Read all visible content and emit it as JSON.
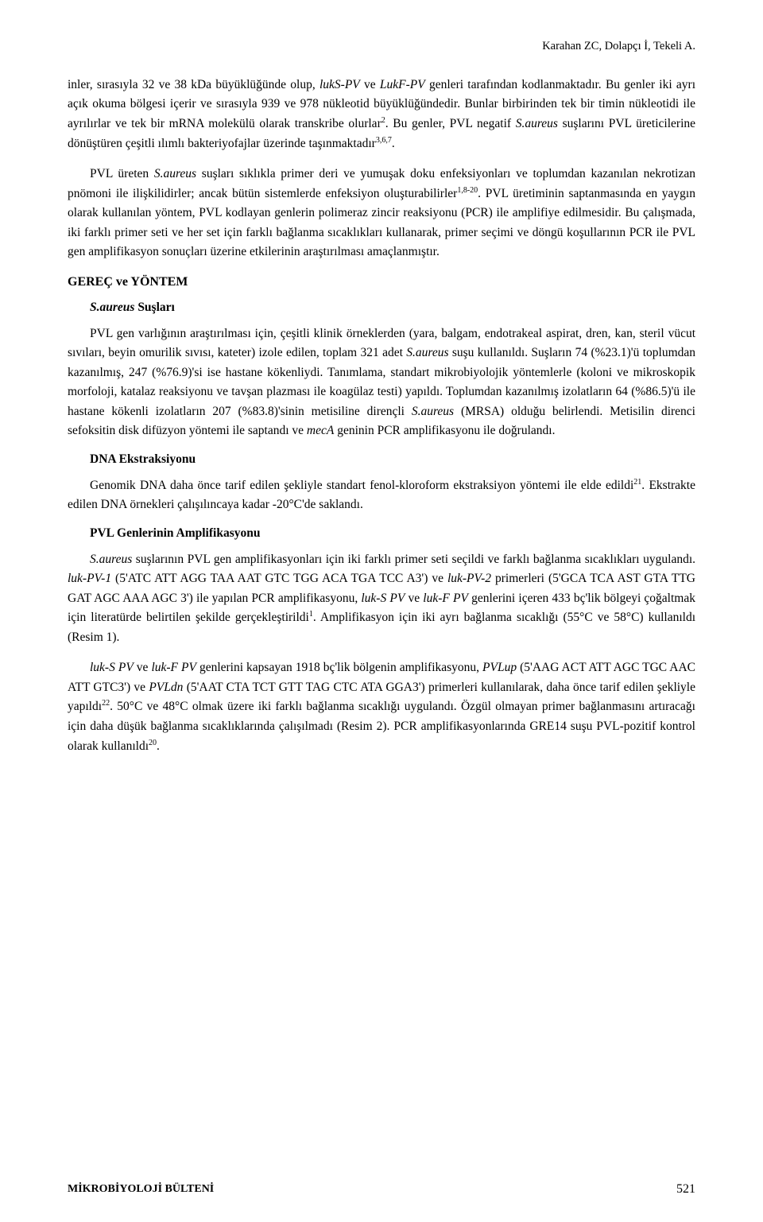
{
  "header": {
    "authors": "Karahan ZC, Dolapçı İ, Tekeli A."
  },
  "paragraphs": {
    "p1_part1": "inler, sırasıyla 32 ve 38 kDa büyüklüğünde olup, ",
    "p1_italic1": "lukS-PV",
    "p1_part2": " ve ",
    "p1_italic2": "LukF-PV",
    "p1_part3": " genleri tarafından kodlanmaktadır. Bu genler iki ayrı açık okuma bölgesi içerir ve sırasıyla 939 ve 978 nükleotid büyüklüğündedir. Bunlar birbirinden tek bir timin nükleotidi ile ayrılırlar ve tek bir mRNA molekülü olarak transkribe olurlar",
    "p1_sup1": "2",
    "p1_part4": ". Bu genler, PVL negatif ",
    "p1_italic3": "S.aureus",
    "p1_part5": " suşlarını PVL üreticilerine dönüştüren çeşitli ılımlı bakteriyofajlar üzerinde taşınmaktadır",
    "p1_sup2": "3,6,7",
    "p1_part6": ".",
    "p2_part1": "PVL üreten ",
    "p2_italic1": "S.aureus",
    "p2_part2": " suşları sıklıkla primer deri ve yumuşak doku enfeksiyonları ve toplumdan kazanılan nekrotizan pnömoni ile ilişkilidirler; ancak bütün sistemlerde enfeksiyon oluşturabilirler",
    "p2_sup1": "1,8-20",
    "p2_part3": ". PVL üretiminin saptanmasında en yaygın olarak kullanılan yöntem, PVL kodlayan genlerin polimeraz zincir reaksiyonu (PCR) ile amplifiye edilmesidir. Bu çalışmada, iki farklı primer seti ve her set için farklı bağlanma sıcaklıkları kullanarak, primer seçimi ve döngü koşullarının PCR ile PVL gen amplifikasyon sonuçları üzerine etkilerinin araştırılması amaçlanmıştır.",
    "h1": "GEREÇ ve YÖNTEM",
    "h2_1_italic": "S.aureus",
    "h2_1_rest": " Suşları",
    "p3_part1": "PVL gen varlığının araştırılması için, çeşitli klinik örneklerden (yara, balgam, endotrakeal aspirat, dren, kan, steril vücut sıvıları, beyin omurilik sıvısı, kateter) izole edilen, toplam 321 adet ",
    "p3_italic1": "S.aureus",
    "p3_part2": " suşu kullanıldı. Suşların 74 (%23.1)'ü toplumdan kazanılmış, 247 (%76.9)'si ise hastane kökenliydi. Tanımlama, standart mikrobiyolojik yöntemlerle (koloni ve mikroskopik morfoloji, katalaz reaksiyonu ve tavşan plazması ile koagülaz testi) yapıldı. Toplumdan kazanılmış izolatların 64 (%86.5)'ü ile hastane kökenli izolatların 207 (%83.8)'sinin metisiline dirençli ",
    "p3_italic2": "S.aureus",
    "p3_part3": " (MRSA) olduğu belirlendi. Metisilin direnci sefoksitin disk difüzyon yöntemi ile saptandı ve ",
    "p3_italic3": "mecA",
    "p3_part4": " geninin PCR amplifikasyonu ile doğrulandı.",
    "h2_2": "DNA Ekstraksiyonu",
    "p4_part1": "Genomik DNA daha önce tarif edilen şekliyle standart fenol-kloroform ekstraksiyon yöntemi ile elde edildi",
    "p4_sup1": "21",
    "p4_part2": ". Ekstrakte edilen DNA örnekleri çalışılıncaya kadar -20°C'de saklandı.",
    "h2_3": "PVL Genlerinin Amplifikasyonu",
    "p5_italic0": "S.aureus",
    "p5_part1": " suşlarının PVL gen amplifikasyonları için iki farklı primer seti seçildi ve farklı bağlanma sıcaklıkları uygulandı. ",
    "p5_italic1": "luk-PV-1",
    "p5_part2": " (5'ATC ATT AGG TAA AAT GTC TGG ACA TGA TCC A3') ve ",
    "p5_italic2": "luk-PV-2",
    "p5_part3": " primerleri (5'GCA TCA AST GTA TTG GAT AGC AAA AGC 3') ile yapılan PCR amplifikasyonu, ",
    "p5_italic3": "luk-S PV",
    "p5_part4": " ve ",
    "p5_italic4": "luk-F PV",
    "p5_part5": " genlerini içeren 433 bç'lik bölgeyi çoğaltmak için literatürde belirtilen şekilde gerçekleştirildi",
    "p5_sup1": "1",
    "p5_part6": ". Amplifikasyon için iki ayrı bağlanma sıcaklığı (55°C ve 58°C) kullanıldı (Resim 1).",
    "p6_italic1": "luk-S PV",
    "p6_part1": " ve ",
    "p6_italic2": "luk-F PV",
    "p6_part2": " genlerini kapsayan 1918 bç'lik bölgenin amplifikasyonu, ",
    "p6_italic3": "PVLup",
    "p6_part3": " (5'AAG ACT ATT AGC TGC AAC ATT GTC3') ve ",
    "p6_italic4": "PVLdn",
    "p6_part4": " (5'AAT CTA TCT GTT TAG CTC ATA GGA3') primerleri kullanılarak, daha önce tarif edilen şekliyle yapıldı",
    "p6_sup1": "22",
    "p6_part5": ". 50°C ve 48°C olmak üzere iki farklı bağlanma sıcaklığı uygulandı. Özgül olmayan primer bağlanmasını artıracağı için daha düşük bağlanma sıcaklıklarında çalışılmadı (Resim 2). PCR amplifikasyonlarında GRE14 suşu PVL-pozitif kontrol olarak kullanıldı",
    "p6_sup2": "20",
    "p6_part6": "."
  },
  "footer": {
    "journal": "MİKROBİYOLOJİ BÜLTENİ",
    "page": "521"
  }
}
